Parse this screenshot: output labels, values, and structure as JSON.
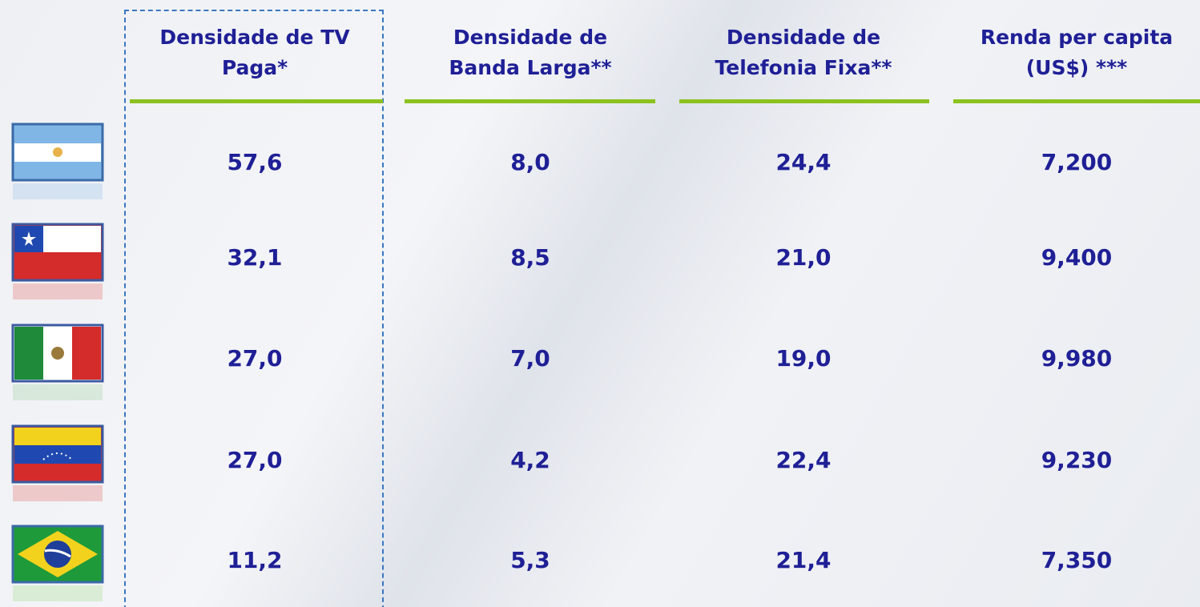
{
  "table": {
    "headers": [
      [
        "Densidade de TV",
        "Paga*"
      ],
      [
        "Densidade de",
        "Banda Larga**"
      ],
      [
        "Densidade de",
        "Telefonia Fixa**"
      ],
      [
        "Renda per capita",
        "(US$) ***"
      ]
    ],
    "rows": [
      [
        "57,6",
        "8,0",
        "24,4",
        "7,200"
      ],
      [
        "32,1",
        "8,5",
        "21,0",
        "9,400"
      ],
      [
        "27,0",
        "7,0",
        "19,0",
        "9,980"
      ],
      [
        "27,0",
        "4,2",
        "22,4",
        "9,230"
      ],
      [
        "11,2",
        "5,3",
        "21,4",
        "7,350"
      ]
    ]
  }
}
